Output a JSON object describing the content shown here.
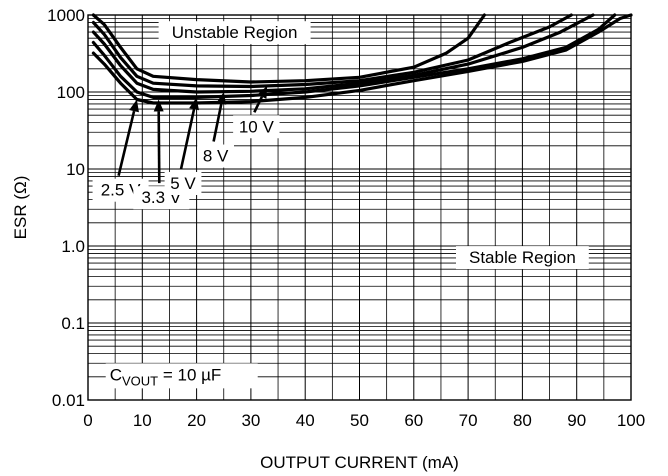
{
  "chart_data": {
    "type": "line",
    "title": "",
    "xlabel": "OUTPUT CURRENT (mA)",
    "ylabel": "ESR (Ω)",
    "xlim": [
      0,
      100
    ],
    "ylim": [
      0.01,
      1000
    ],
    "yscale": "log",
    "grid": true,
    "x_ticks": [
      "0",
      "10",
      "20",
      "30",
      "40",
      "50",
      "60",
      "70",
      "80",
      "90",
      "100"
    ],
    "y_ticks": [
      {
        "value": 0.01,
        "label": "0.01"
      },
      {
        "value": 0.1,
        "label": "0.1"
      },
      {
        "value": 1,
        "label": "1.0"
      },
      {
        "value": 10,
        "label": "10"
      },
      {
        "value": 100,
        "label": "100"
      },
      {
        "value": 1000,
        "label": "1000"
      }
    ],
    "series": [
      {
        "name": "2.5 V",
        "label_pos": [
          6,
          4.5
        ],
        "arrow_to": [
          9,
          80
        ],
        "points": [
          [
            1,
            320
          ],
          [
            3,
            230
          ],
          [
            6,
            130
          ],
          [
            9,
            80
          ],
          [
            12,
            72
          ],
          [
            20,
            72
          ],
          [
            30,
            75
          ],
          [
            40,
            85
          ],
          [
            50,
            105
          ],
          [
            60,
            140
          ],
          [
            70,
            185
          ],
          [
            80,
            250
          ],
          [
            88,
            350
          ],
          [
            94,
            600
          ],
          [
            98,
            900
          ],
          [
            100,
            1000
          ]
        ]
      },
      {
        "name": "3.3 V",
        "label_pos": [
          13.5,
          3.6
        ],
        "arrow_to": [
          13,
          80
        ],
        "points": [
          [
            1,
            440
          ],
          [
            3,
            300
          ],
          [
            6,
            160
          ],
          [
            9,
            100
          ],
          [
            12,
            85
          ],
          [
            20,
            85
          ],
          [
            30,
            90
          ],
          [
            40,
            100
          ],
          [
            50,
            120
          ],
          [
            60,
            155
          ],
          [
            70,
            200
          ],
          [
            80,
            270
          ],
          [
            88,
            380
          ],
          [
            94,
            650
          ],
          [
            97,
            1000
          ]
        ]
      },
      {
        "name": "5 V",
        "label_pos": [
          17.5,
          5.5
        ],
        "arrow_to": [
          20,
          85
        ],
        "points": [
          [
            1,
            600
          ],
          [
            3,
            420
          ],
          [
            6,
            220
          ],
          [
            9,
            130
          ],
          [
            12,
            108
          ],
          [
            20,
            100
          ],
          [
            30,
            102
          ],
          [
            40,
            110
          ],
          [
            50,
            130
          ],
          [
            60,
            165
          ],
          [
            70,
            230
          ],
          [
            80,
            380
          ],
          [
            87,
            600
          ],
          [
            93,
            1000
          ]
        ]
      },
      {
        "name": "8 V",
        "label_pos": [
          23.5,
          12.5
        ],
        "arrow_to": [
          25,
          100
        ],
        "points": [
          [
            1,
            800
          ],
          [
            3,
            560
          ],
          [
            6,
            280
          ],
          [
            9,
            160
          ],
          [
            12,
            130
          ],
          [
            20,
            120
          ],
          [
            30,
            118
          ],
          [
            40,
            125
          ],
          [
            50,
            140
          ],
          [
            60,
            180
          ],
          [
            70,
            260
          ],
          [
            78,
            450
          ],
          [
            85,
            700
          ],
          [
            89,
            1000
          ]
        ]
      },
      {
        "name": "10 V",
        "label_pos": [
          31,
          30
        ],
        "arrow_to": [
          33,
          120
        ],
        "points": [
          [
            1,
            1000
          ],
          [
            3,
            750
          ],
          [
            6,
            380
          ],
          [
            9,
            200
          ],
          [
            12,
            160
          ],
          [
            20,
            145
          ],
          [
            30,
            135
          ],
          [
            40,
            140
          ],
          [
            50,
            155
          ],
          [
            60,
            210
          ],
          [
            66,
            320
          ],
          [
            70,
            500
          ],
          [
            73,
            1000
          ]
        ]
      }
    ],
    "annotations": [
      {
        "text": "Unstable Region",
        "x": 27,
        "y": 500
      },
      {
        "text": "Stable Region",
        "x": 80,
        "y": 0.6
      },
      {
        "text_main": "C",
        "text_sub": "VOUT",
        "text_rest": " = 10 µF",
        "x": 4,
        "y": 0.018
      }
    ]
  }
}
